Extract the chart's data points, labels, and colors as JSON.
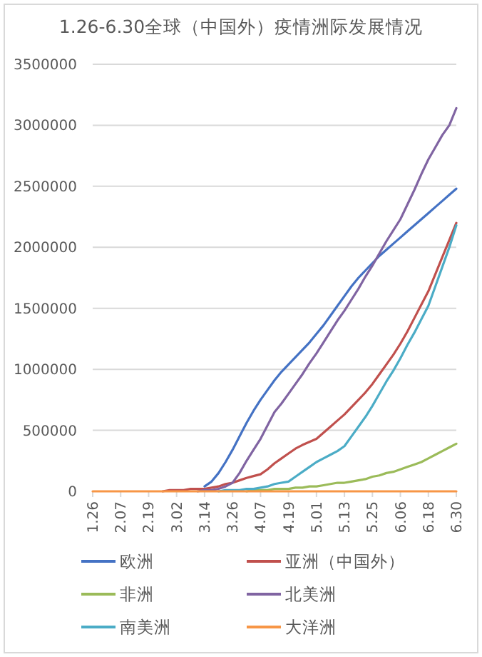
{
  "chart_data": {
    "type": "line",
    "title": "1.26-6.30全球（中国外）疫情洲际发展情况",
    "categories": [
      "1.26",
      null,
      null,
      null,
      "2.07",
      null,
      null,
      null,
      "2.19",
      null,
      null,
      null,
      "3.02",
      null,
      null,
      null,
      "3.14",
      null,
      null,
      null,
      "3.26",
      null,
      null,
      null,
      "4.07",
      null,
      null,
      null,
      "4.19",
      null,
      null,
      null,
      "5.01",
      null,
      null,
      null,
      "5.13",
      null,
      null,
      null,
      "5.25",
      null,
      null,
      null,
      "6.06",
      null,
      null,
      null,
      "6.18",
      null,
      null,
      null,
      "6.30"
    ],
    "series": [
      {
        "name": "欧洲",
        "color": "#4472c4",
        "values": [
          null,
          null,
          null,
          null,
          null,
          null,
          null,
          null,
          null,
          null,
          null,
          null,
          null,
          null,
          null,
          null,
          40000,
          80000,
          150000,
          240000,
          340000,
          450000,
          560000,
          660000,
          750000,
          830000,
          910000,
          980000,
          1040000,
          1100000,
          1160000,
          1220000,
          1290000,
          1360000,
          1440000,
          1520000,
          1600000,
          1680000,
          1750000,
          1810000,
          1870000,
          1930000,
          1980000,
          2030000,
          2080000,
          2130000,
          2180000,
          2230000,
          2280000,
          2330000,
          2380000,
          2430000,
          2480000
        ]
      },
      {
        "name": "亚洲（中国外）",
        "color": "#c0504d",
        "values": [
          null,
          null,
          null,
          null,
          null,
          null,
          null,
          null,
          null,
          null,
          0,
          10000,
          10000,
          10000,
          20000,
          20000,
          20000,
          30000,
          40000,
          60000,
          70000,
          90000,
          110000,
          125000,
          140000,
          180000,
          230000,
          270000,
          310000,
          350000,
          380000,
          405000,
          430000,
          480000,
          530000,
          580000,
          630000,
          690000,
          750000,
          810000,
          880000,
          960000,
          1040000,
          1120000,
          1210000,
          1310000,
          1420000,
          1530000,
          1640000,
          1780000,
          1920000,
          2060000,
          2200000
        ]
      },
      {
        "name": "非洲",
        "color": "#9bbb59",
        "values": [
          null,
          null,
          null,
          null,
          null,
          null,
          null,
          null,
          null,
          null,
          null,
          null,
          null,
          null,
          null,
          null,
          null,
          null,
          null,
          null,
          null,
          null,
          0,
          10000,
          10000,
          10000,
          20000,
          20000,
          20000,
          30000,
          30000,
          40000,
          40000,
          50000,
          60000,
          70000,
          70000,
          80000,
          90000,
          100000,
          120000,
          130000,
          150000,
          160000,
          180000,
          200000,
          220000,
          240000,
          270000,
          300000,
          330000,
          360000,
          390000
        ]
      },
      {
        "name": "北美洲",
        "color": "#8064a2",
        "values": [
          null,
          null,
          null,
          null,
          null,
          null,
          null,
          null,
          null,
          null,
          null,
          null,
          null,
          null,
          null,
          0,
          10000,
          10000,
          20000,
          40000,
          70000,
          150000,
          250000,
          340000,
          430000,
          540000,
          650000,
          720000,
          800000,
          880000,
          960000,
          1050000,
          1130000,
          1220000,
          1310000,
          1400000,
          1480000,
          1570000,
          1660000,
          1760000,
          1850000,
          1950000,
          2050000,
          2140000,
          2230000,
          2350000,
          2470000,
          2600000,
          2720000,
          2820000,
          2920000,
          3000000,
          3140000
        ]
      },
      {
        "name": "南美洲",
        "color": "#4bacc6",
        "values": [
          null,
          null,
          null,
          null,
          null,
          null,
          null,
          null,
          null,
          null,
          null,
          null,
          null,
          null,
          null,
          null,
          null,
          null,
          0,
          10000,
          10000,
          10000,
          20000,
          20000,
          30000,
          40000,
          60000,
          70000,
          80000,
          120000,
          160000,
          200000,
          240000,
          270000,
          300000,
          330000,
          370000,
          450000,
          530000,
          610000,
          700000,
          800000,
          900000,
          990000,
          1090000,
          1200000,
          1300000,
          1410000,
          1520000,
          1680000,
          1840000,
          2000000,
          2180000
        ]
      },
      {
        "name": "大洋洲",
        "color": "#f79646",
        "values": [
          0,
          0,
          0,
          0,
          0,
          0,
          0,
          0,
          0,
          0,
          0,
          0,
          0,
          0,
          0,
          0,
          0,
          0,
          0,
          0,
          0,
          0,
          0,
          0,
          0,
          0,
          0,
          0,
          0,
          0,
          0,
          0,
          0,
          0,
          0,
          0,
          0,
          0,
          0,
          0,
          0,
          0,
          0,
          0,
          0,
          0,
          0,
          0,
          0,
          0,
          0,
          0,
          0
        ]
      }
    ],
    "ylim": [
      0,
      3500000
    ],
    "yticks": [
      0,
      500000,
      1000000,
      1500000,
      2000000,
      2500000,
      3000000,
      3500000
    ],
    "grid": "y",
    "legend": "bottom",
    "marker": "none",
    "line_style": "solid"
  }
}
